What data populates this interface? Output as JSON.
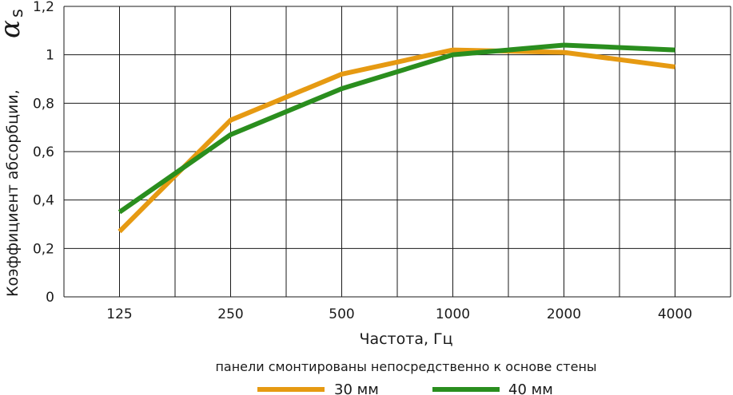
{
  "chart_data": {
    "type": "line",
    "categories": [
      "125",
      "250",
      "500",
      "1000",
      "2000",
      "4000"
    ],
    "xlabel": "Частота, Гц",
    "ylabel": "Коэффициент абсорбции,",
    "ylabel_symbol": "α",
    "ylabel_subscript": "s",
    "yticks": [
      "0",
      "0,2",
      "0,4",
      "0,6",
      "0,8",
      "1",
      "1,2"
    ],
    "ylim": [
      0,
      1.2
    ],
    "grid": true,
    "note": "панели смонтированы непосредственно к основе стены",
    "legend_position": "bottom",
    "series": [
      {
        "name": "30 мм",
        "color": "#E69A12",
        "values": [
          0.27,
          0.73,
          0.92,
          1.02,
          1.01,
          0.95
        ]
      },
      {
        "name": "40 мм",
        "color": "#2A8E1E",
        "values": [
          0.35,
          0.67,
          0.86,
          1.0,
          1.04,
          1.02
        ]
      }
    ]
  }
}
